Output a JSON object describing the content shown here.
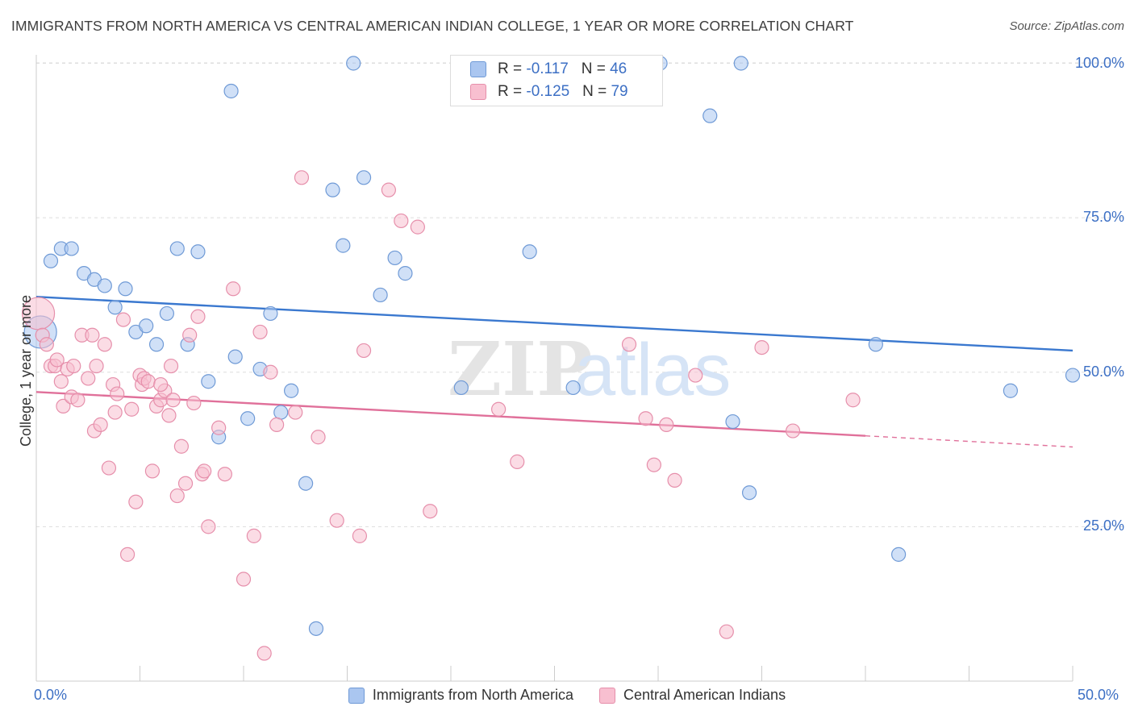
{
  "title": "IMMIGRANTS FROM NORTH AMERICA VS CENTRAL AMERICAN INDIAN COLLEGE, 1 YEAR OR MORE CORRELATION CHART",
  "source": "Source: ZipAtlas.com",
  "watermark": {
    "zip": "ZIP",
    "atlas": "atlas"
  },
  "stats": [
    {
      "r_label": "R = ",
      "r_value": "-0.117",
      "n_label": "N = ",
      "n_value": "46",
      "color": "#aac6f0",
      "border": "#6f9ad6"
    },
    {
      "r_label": "R = ",
      "r_value": "-0.125",
      "n_label": "N = ",
      "n_value": "79",
      "color": "#f8bfd0",
      "border": "#e68fab"
    }
  ],
  "chart_data": {
    "type": "scatter",
    "title": "IMMIGRANTS FROM NORTH AMERICA VS CENTRAL AMERICAN INDIAN COLLEGE, 1 YEAR OR MORE CORRELATION CHART",
    "xlabel": "",
    "ylabel": "College, 1 year or more",
    "xlim": [
      0,
      50
    ],
    "ylim": [
      0,
      102
    ],
    "x_tick_labels": [
      "0.0%",
      "50.0%"
    ],
    "y_ticks": [
      25,
      50,
      75,
      100
    ],
    "y_tick_labels": [
      "25.0%",
      "50.0%",
      "75.0%",
      "100.0%"
    ],
    "grid": true,
    "legend": "bottom",
    "series": [
      {
        "name": "Immigrants from North America",
        "color": "#aac6f0",
        "edge": "#6f9ad6",
        "line_color": "#3a78cf",
        "trend": {
          "x": [
            0,
            50
          ],
          "y": [
            62.2,
            53.5
          ]
        },
        "points": [
          {
            "x": 0.2,
            "y": 56.5,
            "big": true
          },
          {
            "x": 0.7,
            "y": 68
          },
          {
            "x": 1.2,
            "y": 70
          },
          {
            "x": 1.7,
            "y": 70
          },
          {
            "x": 2.3,
            "y": 66
          },
          {
            "x": 2.8,
            "y": 65
          },
          {
            "x": 3.3,
            "y": 64
          },
          {
            "x": 3.8,
            "y": 60.5
          },
          {
            "x": 4.3,
            "y": 63.5
          },
          {
            "x": 4.8,
            "y": 56.5
          },
          {
            "x": 5.3,
            "y": 57.5
          },
          {
            "x": 5.8,
            "y": 54.5
          },
          {
            "x": 6.3,
            "y": 59.5
          },
          {
            "x": 6.8,
            "y": 70
          },
          {
            "x": 7.3,
            "y": 54.5
          },
          {
            "x": 7.8,
            "y": 69.5
          },
          {
            "x": 8.3,
            "y": 48.5
          },
          {
            "x": 8.8,
            "y": 39.5
          },
          {
            "x": 9.4,
            "y": 95.5
          },
          {
            "x": 9.6,
            "y": 52.5
          },
          {
            "x": 10.2,
            "y": 42.5
          },
          {
            "x": 10.8,
            "y": 50.5
          },
          {
            "x": 11.3,
            "y": 59.5
          },
          {
            "x": 11.8,
            "y": 43.5
          },
          {
            "x": 12.3,
            "y": 47
          },
          {
            "x": 13,
            "y": 32
          },
          {
            "x": 13.5,
            "y": 8.5
          },
          {
            "x": 14.3,
            "y": 79.5
          },
          {
            "x": 14.8,
            "y": 70.5
          },
          {
            "x": 15.3,
            "y": 100
          },
          {
            "x": 15.8,
            "y": 81.5
          },
          {
            "x": 16.6,
            "y": 62.5
          },
          {
            "x": 17.3,
            "y": 68.5
          },
          {
            "x": 17.8,
            "y": 66
          },
          {
            "x": 20.5,
            "y": 47.5
          },
          {
            "x": 23.8,
            "y": 69.5
          },
          {
            "x": 25.9,
            "y": 47.5
          },
          {
            "x": 30.1,
            "y": 100
          },
          {
            "x": 32.5,
            "y": 91.5
          },
          {
            "x": 33.6,
            "y": 42
          },
          {
            "x": 34,
            "y": 100
          },
          {
            "x": 34.4,
            "y": 30.5
          },
          {
            "x": 40.5,
            "y": 54.5
          },
          {
            "x": 41.6,
            "y": 20.5
          },
          {
            "x": 47,
            "y": 47
          },
          {
            "x": 50,
            "y": 49.5
          }
        ]
      },
      {
        "name": "Central American Indians",
        "color": "#f8bfd0",
        "edge": "#e68fab",
        "line_color": "#e0709a",
        "trend": {
          "x": [
            0,
            40
          ],
          "y": [
            46.8,
            39.7
          ]
        },
        "trend_dashed": {
          "x": [
            40,
            50
          ],
          "y": [
            39.7,
            37.9
          ]
        },
        "points": [
          {
            "x": 0.1,
            "y": 59.5,
            "big": true
          },
          {
            "x": 0.3,
            "y": 56
          },
          {
            "x": 0.5,
            "y": 54.5
          },
          {
            "x": 0.7,
            "y": 51
          },
          {
            "x": 0.9,
            "y": 51
          },
          {
            "x": 1.0,
            "y": 52
          },
          {
            "x": 1.2,
            "y": 48.5
          },
          {
            "x": 1.3,
            "y": 44.5
          },
          {
            "x": 1.5,
            "y": 50.5
          },
          {
            "x": 1.7,
            "y": 46
          },
          {
            "x": 1.8,
            "y": 51
          },
          {
            "x": 2.0,
            "y": 45.5
          },
          {
            "x": 2.2,
            "y": 56
          },
          {
            "x": 2.5,
            "y": 49
          },
          {
            "x": 2.7,
            "y": 56
          },
          {
            "x": 2.8,
            "y": 40.5
          },
          {
            "x": 2.9,
            "y": 51
          },
          {
            "x": 3.1,
            "y": 41.5
          },
          {
            "x": 3.3,
            "y": 54.5
          },
          {
            "x": 3.5,
            "y": 34.5
          },
          {
            "x": 3.7,
            "y": 48
          },
          {
            "x": 3.8,
            "y": 43.5
          },
          {
            "x": 3.9,
            "y": 46.5
          },
          {
            "x": 4.2,
            "y": 58.5
          },
          {
            "x": 4.4,
            "y": 20.5
          },
          {
            "x": 4.6,
            "y": 44
          },
          {
            "x": 4.8,
            "y": 29
          },
          {
            "x": 5.0,
            "y": 49.5
          },
          {
            "x": 5.1,
            "y": 48
          },
          {
            "x": 5.2,
            "y": 49
          },
          {
            "x": 5.4,
            "y": 48.5
          },
          {
            "x": 5.6,
            "y": 34
          },
          {
            "x": 5.8,
            "y": 44.5
          },
          {
            "x": 6.0,
            "y": 45.5
          },
          {
            "x": 6.2,
            "y": 47
          },
          {
            "x": 6.4,
            "y": 43
          },
          {
            "x": 6.6,
            "y": 45.5
          },
          {
            "x": 6.5,
            "y": 51
          },
          {
            "x": 6.8,
            "y": 30
          },
          {
            "x": 7.0,
            "y": 38
          },
          {
            "x": 7.2,
            "y": 32
          },
          {
            "x": 7.4,
            "y": 56
          },
          {
            "x": 7.6,
            "y": 45
          },
          {
            "x": 7.8,
            "y": 59
          },
          {
            "x": 8.0,
            "y": 33.5
          },
          {
            "x": 8.3,
            "y": 25
          },
          {
            "x": 8.8,
            "y": 41
          },
          {
            "x": 9.1,
            "y": 33.5
          },
          {
            "x": 9.5,
            "y": 63.5
          },
          {
            "x": 10.0,
            "y": 16.5
          },
          {
            "x": 10.5,
            "y": 23.5
          },
          {
            "x": 10.8,
            "y": 56.5
          },
          {
            "x": 11.3,
            "y": 50
          },
          {
            "x": 11.6,
            "y": 41.5
          },
          {
            "x": 12.5,
            "y": 43.5
          },
          {
            "x": 12.8,
            "y": 81.5
          },
          {
            "x": 13.6,
            "y": 39.5
          },
          {
            "x": 14.5,
            "y": 26
          },
          {
            "x": 15.6,
            "y": 23.5
          },
          {
            "x": 15.8,
            "y": 53.5
          },
          {
            "x": 17.0,
            "y": 79.5
          },
          {
            "x": 17.6,
            "y": 74.5
          },
          {
            "x": 18.4,
            "y": 73.5
          },
          {
            "x": 19.0,
            "y": 27.5
          },
          {
            "x": 22.3,
            "y": 44
          },
          {
            "x": 23.2,
            "y": 35.5
          },
          {
            "x": 28.6,
            "y": 54.5
          },
          {
            "x": 29.4,
            "y": 42.5
          },
          {
            "x": 29.8,
            "y": 35
          },
          {
            "x": 30.4,
            "y": 41.5
          },
          {
            "x": 30.8,
            "y": 32.5
          },
          {
            "x": 31.8,
            "y": 49.5
          },
          {
            "x": 33.3,
            "y": 8
          },
          {
            "x": 35.0,
            "y": 54
          },
          {
            "x": 36.5,
            "y": 40.5
          },
          {
            "x": 39.4,
            "y": 45.5
          },
          {
            "x": 8.1,
            "y": 34
          },
          {
            "x": 11.0,
            "y": 4.5
          },
          {
            "x": 6.0,
            "y": 48
          }
        ]
      }
    ]
  }
}
